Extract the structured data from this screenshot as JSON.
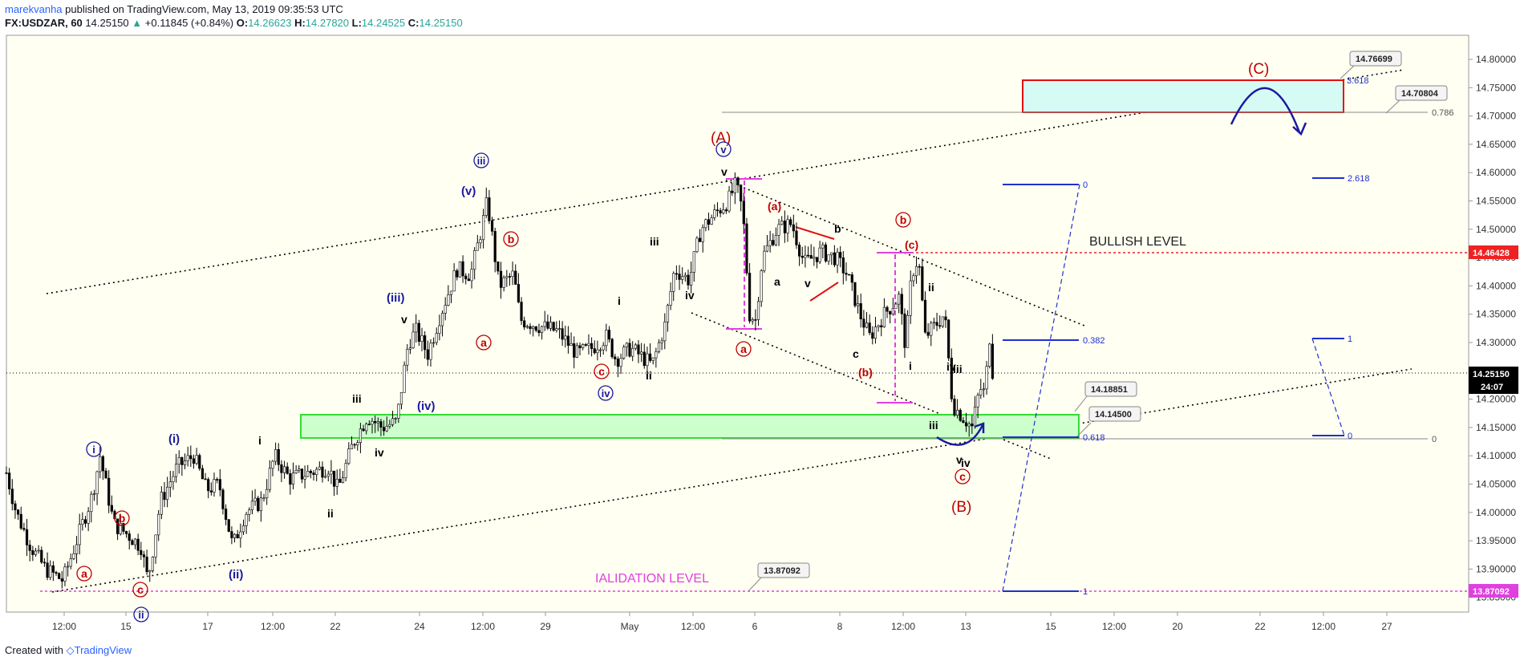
{
  "header": {
    "user": "marekvanha",
    "published_text": "published on TradingView.com, May 13, 2019 09:35:53 UTC",
    "symbol": "FX:USDZAR, 60",
    "last": "14.25150",
    "change": "+0.11845 (+0.84%)",
    "o_label": "O:",
    "o": "14.26623",
    "h_label": "H:",
    "h": "14.27820",
    "l_label": "L:",
    "l": "14.24525",
    "c_label": "C:",
    "c": "14.25150"
  },
  "footer": {
    "created_with": "Created with",
    "brand": "TradingView"
  },
  "colors": {
    "up": "#26a69a",
    "body": "#ffffff",
    "candle": "#000000",
    "plot_bg": "#fffff2",
    "green_zone": "#ccffcc",
    "green_border": "#33dd33",
    "cyan_zone": "#d6fbf4",
    "red_border": "#e01010",
    "magenta": "#e040e0",
    "wave_red": "#c00000",
    "wave_blue": "#1a1aa0",
    "fib_blue": "#2030d0",
    "bullish_red": "#ee2222"
  },
  "chart_data": {
    "type": "candlestick",
    "ylim": [
      13.83,
      14.83
    ],
    "x_ticks": [
      "12:00",
      "15",
      "17",
      "12:00",
      "22",
      "24",
      "12:00",
      "29",
      "May",
      "12:00",
      "6",
      "8",
      "12:00",
      "13",
      "15",
      "12:00",
      "20",
      "22",
      "12:00",
      "27"
    ],
    "y_ticks": [
      "14.80000",
      "14.75000",
      "14.70000",
      "14.65000",
      "14.60000",
      "14.55000",
      "14.50000",
      "14.45000",
      "14.40000",
      "14.35000",
      "14.30000",
      "14.25000",
      "14.20000",
      "14.15000",
      "14.10000",
      "14.05000",
      "14.00000",
      "13.95000",
      "13.90000",
      "13.85000"
    ],
    "price_path": [
      [
        0,
        14.07
      ],
      [
        10,
        14.0
      ],
      [
        25,
        13.94
      ],
      [
        40,
        13.9
      ],
      [
        58,
        13.88
      ],
      [
        72,
        13.95
      ],
      [
        88,
        14.03
      ],
      [
        96,
        14.1
      ],
      [
        110,
        13.98
      ],
      [
        125,
        13.96
      ],
      [
        138,
        13.94
      ],
      [
        145,
        13.88
      ],
      [
        158,
        14.02
      ],
      [
        175,
        14.08
      ],
      [
        192,
        14.1
      ],
      [
        205,
        14.04
      ],
      [
        218,
        14.05
      ],
      [
        232,
        13.94
      ],
      [
        245,
        14.0
      ],
      [
        262,
        14.02
      ],
      [
        275,
        14.1
      ],
      [
        290,
        14.06
      ],
      [
        310,
        14.07
      ],
      [
        330,
        14.08
      ],
      [
        340,
        14.04
      ],
      [
        355,
        14.12
      ],
      [
        370,
        14.17
      ],
      [
        385,
        14.15
      ],
      [
        400,
        14.16
      ],
      [
        412,
        14.3
      ],
      [
        420,
        14.32
      ],
      [
        432,
        14.28
      ],
      [
        445,
        14.35
      ],
      [
        462,
        14.43
      ],
      [
        476,
        14.42
      ],
      [
        487,
        14.5
      ],
      [
        493,
        14.55
      ],
      [
        505,
        14.4
      ],
      [
        520,
        14.42
      ],
      [
        527,
        14.34
      ],
      [
        545,
        14.33
      ],
      [
        565,
        14.32
      ],
      [
        585,
        14.28
      ],
      [
        600,
        14.29
      ],
      [
        615,
        14.31
      ],
      [
        625,
        14.27
      ],
      [
        640,
        14.29
      ],
      [
        655,
        14.27
      ],
      [
        662,
        14.26
      ],
      [
        675,
        14.33
      ],
      [
        685,
        14.43
      ],
      [
        700,
        14.41
      ],
      [
        712,
        14.5
      ],
      [
        728,
        14.53
      ],
      [
        740,
        14.55
      ],
      [
        748,
        14.58
      ],
      [
        755,
        14.53
      ],
      [
        762,
        14.35
      ],
      [
        768,
        14.34
      ],
      [
        775,
        14.45
      ],
      [
        790,
        14.5
      ],
      [
        805,
        14.51
      ],
      [
        818,
        14.44
      ],
      [
        835,
        14.46
      ],
      [
        850,
        14.45
      ],
      [
        862,
        14.42
      ],
      [
        875,
        14.35
      ],
      [
        885,
        14.31
      ],
      [
        900,
        14.35
      ],
      [
        915,
        14.38
      ],
      [
        922,
        14.29
      ],
      [
        928,
        14.42
      ],
      [
        935,
        14.45
      ],
      [
        942,
        14.31
      ],
      [
        952,
        14.33
      ],
      [
        962,
        14.35
      ],
      [
        970,
        14.19
      ],
      [
        980,
        14.17
      ],
      [
        990,
        14.15
      ],
      [
        998,
        14.22
      ],
      [
        1003,
        14.21
      ],
      [
        1008,
        14.31
      ],
      [
        1011,
        14.25
      ]
    ],
    "last_price": "14.25150",
    "countdown": "24:07",
    "price_tags": {
      "bullish": "14.46428",
      "invalidation": "13.87092"
    },
    "callouts": [
      "14.76699",
      "14.70804",
      "14.18851",
      "14.14500",
      "13.87092"
    ],
    "labels": {
      "bullish_level": "BULLISH LEVEL",
      "invalidation_level": "IALIDATION LEVEL"
    },
    "fib_levels": {
      "top_right": [
        "3.618",
        "0.786",
        "0"
      ],
      "mid": [
        "0",
        "0.382",
        "0.618",
        "1"
      ],
      "right": [
        "2.618",
        "1",
        "0"
      ]
    },
    "waves": {
      "major": [
        "(A)",
        "(B)",
        "(C)"
      ],
      "red_circled": [
        "a",
        "b",
        "c",
        "a",
        "b",
        "c",
        "a",
        "b",
        "c"
      ],
      "red_paren": [
        "(a)",
        "(b)",
        "(c)"
      ],
      "blue_circled": [
        "i",
        "iii",
        "iv",
        "v",
        "ii"
      ],
      "blue_paren": [
        "(i)",
        "(ii)",
        "(iii)",
        "(iv)",
        "(v)"
      ],
      "black_roman": [
        "i",
        "iii",
        "iv",
        "v",
        "iii",
        "iv",
        "v",
        "i",
        "ii",
        "ii",
        "iii",
        "iv",
        "v",
        "i",
        "ii",
        "iii",
        "iv",
        "v"
      ],
      "black_letters": [
        "a",
        "b",
        "c"
      ]
    }
  }
}
